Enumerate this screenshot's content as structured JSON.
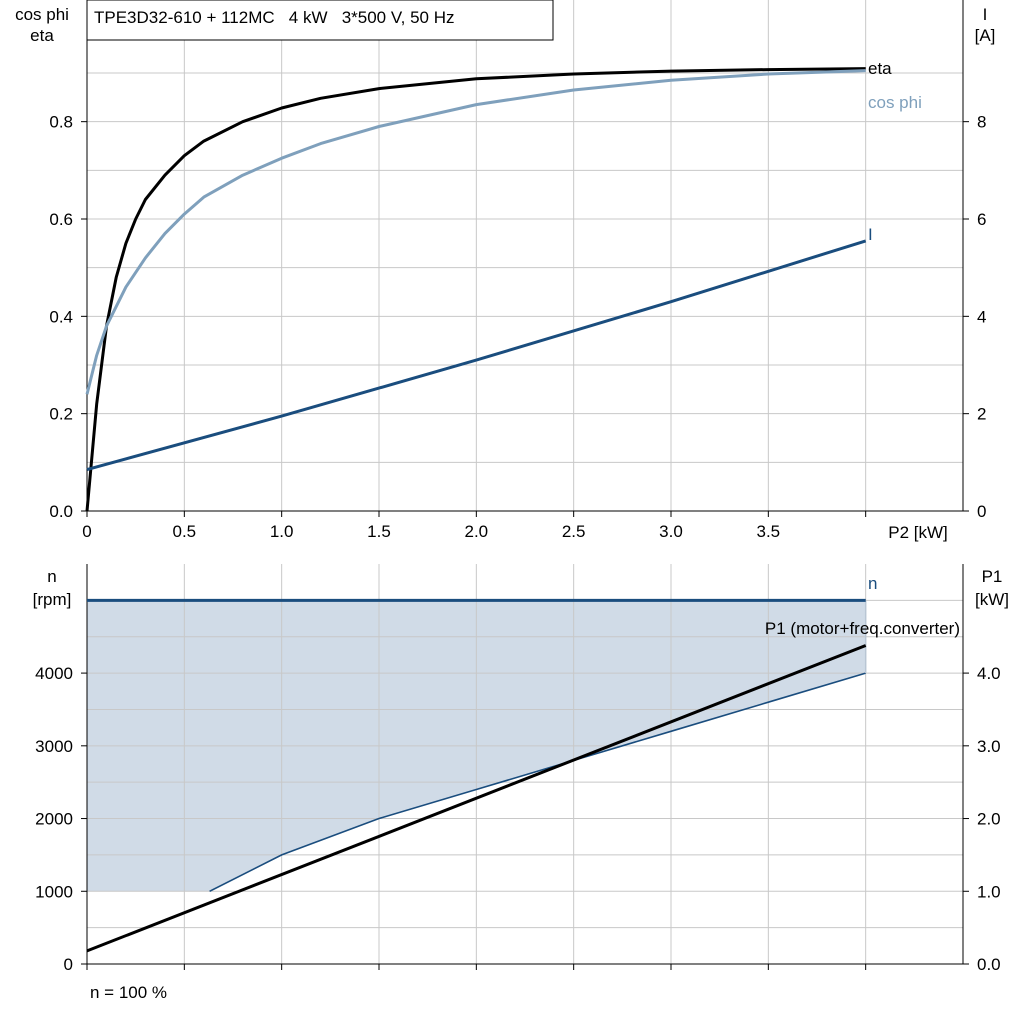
{
  "chart_data": [
    {
      "type": "line",
      "title": "TPE3D32-610 + 112MC   4 kW   3*500 V, 50 Hz",
      "xlabel": "P2 [kW]",
      "ylabel_left": [
        "cos phi",
        "eta"
      ],
      "ylabel_right": [
        "I",
        "[A]"
      ],
      "xlim": [
        0,
        4.5
      ],
      "xticks": [
        0,
        0.5,
        1.0,
        1.5,
        2.0,
        2.5,
        3.0,
        3.5
      ],
      "xtick_labels": [
        "0",
        "0.5",
        "1.0",
        "1.5",
        "2.0",
        "2.5",
        "3.0",
        "3.5"
      ],
      "ylim_left": [
        0,
        1.05
      ],
      "yticks_left": [
        0,
        0.2,
        0.4,
        0.6,
        0.8
      ],
      "ytick_labels_left": [
        "0.0",
        "0.2",
        "0.4",
        "0.6",
        "0.8"
      ],
      "ylim_right": [
        0,
        10.5
      ],
      "yticks_right": [
        0,
        2,
        4,
        6,
        8
      ],
      "ytick_labels_right": [
        "0",
        "2",
        "4",
        "6",
        "8"
      ],
      "grid": true,
      "series": [
        {
          "name": "eta",
          "axis": "left",
          "color": "#000000",
          "x": [
            0,
            0.05,
            0.1,
            0.15,
            0.2,
            0.25,
            0.3,
            0.4,
            0.5,
            0.6,
            0.8,
            1.0,
            1.2,
            1.5,
            2.0,
            2.5,
            3.0,
            3.5,
            4.0
          ],
          "y": [
            0,
            0.22,
            0.38,
            0.48,
            0.55,
            0.6,
            0.64,
            0.69,
            0.73,
            0.76,
            0.8,
            0.828,
            0.848,
            0.868,
            0.888,
            0.898,
            0.904,
            0.907,
            0.909
          ]
        },
        {
          "name": "cos phi",
          "axis": "left",
          "color": "#7fa0bc",
          "x": [
            0,
            0.05,
            0.1,
            0.2,
            0.3,
            0.4,
            0.5,
            0.6,
            0.8,
            1.0,
            1.2,
            1.5,
            2.0,
            2.5,
            3.0,
            3.5,
            4.0
          ],
          "y": [
            0.24,
            0.32,
            0.38,
            0.46,
            0.52,
            0.57,
            0.61,
            0.645,
            0.69,
            0.725,
            0.755,
            0.79,
            0.835,
            0.865,
            0.885,
            0.898,
            0.905
          ]
        },
        {
          "name": "I",
          "axis": "right",
          "color": "#1a4d7e",
          "x": [
            0,
            1.0,
            2.0,
            3.0,
            4.0
          ],
          "y": [
            0.85,
            1.95,
            3.1,
            4.3,
            5.55
          ]
        }
      ]
    },
    {
      "type": "area",
      "xlim": [
        0,
        4.5
      ],
      "xticks": [
        0,
        0.5,
        1.0,
        1.5,
        2.0,
        2.5,
        3.0,
        3.5
      ],
      "ylabel_left": [
        "n",
        "[rpm]"
      ],
      "ylabel_right": [
        "P1",
        "[kW]"
      ],
      "ylim_left": [
        0,
        5500
      ],
      "yticks_left": [
        0,
        1000,
        2000,
        3000,
        4000
      ],
      "ytick_labels_left": [
        "0",
        "1000",
        "2000",
        "3000",
        "4000"
      ],
      "ylim_right": [
        0,
        5.5
      ],
      "yticks_right": [
        0,
        1,
        2,
        3,
        4
      ],
      "ytick_labels_right": [
        "0.0",
        "1.0",
        "2.0",
        "3.0",
        "4.0"
      ],
      "grid": true,
      "footnote": "n = 100 %",
      "operating_range": {
        "color": "#d0dbe7",
        "n_max": 5000,
        "n_min": 1000,
        "lower_boundary_x": [
          0.63,
          1.0,
          1.5,
          2.0,
          2.5,
          3.0,
          3.5,
          4.0
        ],
        "lower_boundary_y": [
          1000,
          1500,
          2000,
          2400,
          2800,
          3200,
          3600,
          4000
        ]
      },
      "series": [
        {
          "name": "n",
          "axis": "left",
          "color": "#1a4d7e",
          "x": [
            0,
            4.0
          ],
          "y": [
            5000,
            5000
          ]
        },
        {
          "name": "P1 (motor+freq.converter)",
          "axis": "right",
          "color": "#000000",
          "x": [
            0,
            4.0
          ],
          "y": [
            0.18,
            4.38
          ]
        }
      ]
    }
  ]
}
